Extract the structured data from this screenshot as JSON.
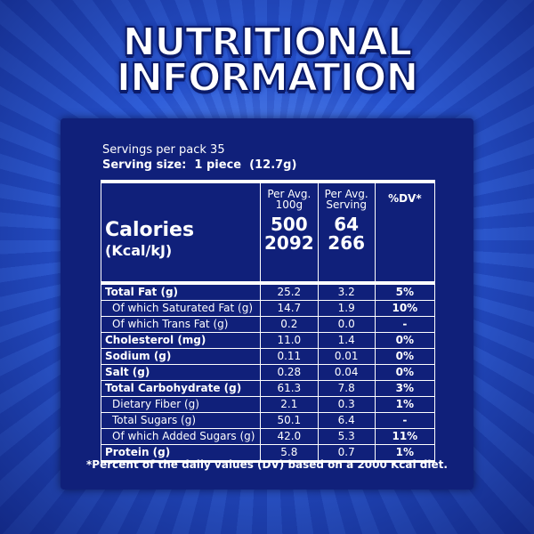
{
  "header": {
    "title": [
      "NUTRITIONAL",
      "INFORMATION"
    ]
  },
  "servings_per_pack": "Servings per pack 35",
  "serving_size": "Serving size:  1 piece  (12.7g)",
  "calories": {
    "label": "Calories",
    "unit": "(Kcal/kJ)",
    "columns": [
      "Per Avg. 100g",
      "Per Avg. Serving",
      "%DV*"
    ],
    "per_100g": [
      "500",
      "2092"
    ],
    "per_serving": [
      "64",
      "266"
    ]
  },
  "table": {
    "rows": [
      {
        "name": "Total Fat (g)",
        "per_100g": "25.2",
        "per_serving": "3.2",
        "dv": "5%",
        "bold": true
      },
      {
        "name": "Of which Saturated Fat (g)",
        "per_100g": "14.7",
        "per_serving": "1.9",
        "dv": "10%",
        "indent": true
      },
      {
        "name": "Of which Trans Fat (g)",
        "per_100g": "0.2",
        "per_serving": "0.0",
        "dv": "-",
        "indent": true
      },
      {
        "name": "Cholesterol (mg)",
        "per_100g": "11.0",
        "per_serving": "1.4",
        "dv": "0%",
        "bold": true
      },
      {
        "name": "Sodium (g)",
        "per_100g": "0.11",
        "per_serving": "0.01",
        "dv": "0%",
        "bold": true
      },
      {
        "name": "Salt (g)",
        "per_100g": "0.28",
        "per_serving": "0.04",
        "dv": "0%",
        "bold": true
      },
      {
        "name": "Total Carbohydrate (g)",
        "per_100g": "61.3",
        "per_serving": "7.8",
        "dv": "3%",
        "bold": true
      },
      {
        "name": "Dietary Fiber (g)",
        "per_100g": "2.1",
        "per_serving": "0.3",
        "dv": "1%",
        "indent": true
      },
      {
        "name": "Total Sugars (g)",
        "per_100g": "50.1",
        "per_serving": "6.4",
        "dv": "-",
        "indent": true
      },
      {
        "name": "Of which Added Sugars (g)",
        "per_100g": "42.0",
        "per_serving": "5.3",
        "dv": "11%",
        "indent": true
      },
      {
        "name": "Protein (g)",
        "per_100g": "5.8",
        "per_serving": "0.7",
        "dv": "1%",
        "bold": true
      }
    ]
  },
  "footnote": "*Percent of the daily values (DV) based on a 2000 Kcal diet."
}
